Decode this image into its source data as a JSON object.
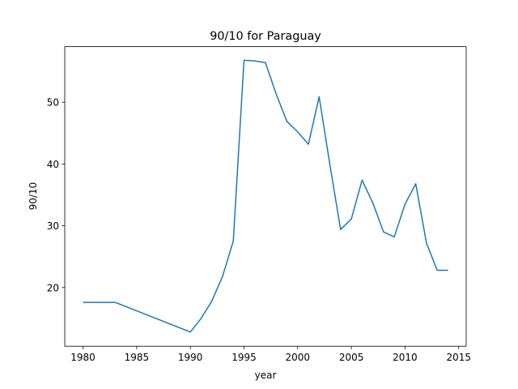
{
  "chart_data": {
    "type": "line",
    "title": "90/10 for Paraguay",
    "x_label": "year",
    "y_label": "90/10",
    "x": [
      1980,
      1981,
      1982,
      1983,
      1990,
      1991,
      1992,
      1993,
      1994,
      1995,
      1996,
      1997,
      1998,
      1999,
      2000,
      2001,
      2002,
      2003,
      2004,
      2005,
      2006,
      2007,
      2008,
      2009,
      2010,
      2011,
      2012,
      2013,
      2014
    ],
    "series": [
      {
        "name": "90/10",
        "color": "#1f77b4",
        "values": [
          17.6,
          17.6,
          17.6,
          17.6,
          12.8,
          15.0,
          17.8,
          21.8,
          27.5,
          56.8,
          56.7,
          56.4,
          51.3,
          46.9,
          45.2,
          43.2,
          50.9,
          39.9,
          29.4,
          31.1,
          37.4,
          33.7,
          29.0,
          28.2,
          33.5,
          36.8,
          27.2,
          22.8,
          22.8
        ]
      }
    ],
    "xlim": [
      1978.3,
      2015.7
    ],
    "ylim": [
      10.5,
      59.0
    ],
    "xticks": [
      1980,
      1985,
      1990,
      1995,
      2000,
      2005,
      2010,
      2015
    ],
    "yticks": [
      20,
      30,
      40,
      50
    ]
  }
}
